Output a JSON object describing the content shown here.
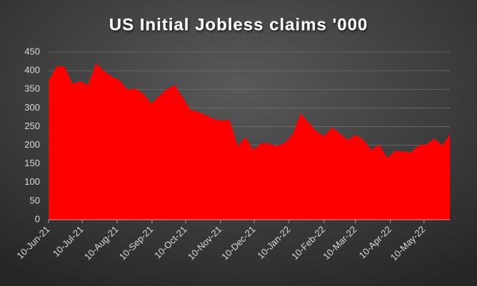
{
  "chart_data": {
    "type": "area",
    "title": "US Initial Jobless claims '000",
    "x": [
      "10-Jun-21",
      "17-Jun-21",
      "24-Jun-21",
      "1-Jul-21",
      "8-Jul-21",
      "15-Jul-21",
      "22-Jul-21",
      "29-Jul-21",
      "5-Aug-21",
      "12-Aug-21",
      "19-Aug-21",
      "26-Aug-21",
      "2-Sep-21",
      "9-Sep-21",
      "16-Sep-21",
      "23-Sep-21",
      "30-Sep-21",
      "7-Oct-21",
      "14-Oct-21",
      "21-Oct-21",
      "28-Oct-21",
      "4-Nov-21",
      "11-Nov-21",
      "18-Nov-21",
      "25-Nov-21",
      "2-Dec-21",
      "9-Dec-21",
      "16-Dec-21",
      "23-Dec-21",
      "30-Dec-21",
      "6-Jan-22",
      "13-Jan-22",
      "20-Jan-22",
      "27-Jan-22",
      "3-Feb-22",
      "10-Feb-22",
      "17-Feb-22",
      "24-Feb-22",
      "3-Mar-22",
      "10-Mar-22",
      "17-Mar-22",
      "24-Mar-22",
      "31-Mar-22",
      "7-Apr-22",
      "14-Apr-22",
      "21-Apr-22",
      "28-Apr-22",
      "5-May-22",
      "12-May-22",
      "19-May-22",
      "26-May-22",
      "2-Jun-22"
    ],
    "values": [
      375,
      412,
      412,
      366,
      372,
      362,
      420,
      400,
      385,
      375,
      350,
      352,
      340,
      312,
      332,
      351,
      362,
      330,
      296,
      290,
      281,
      271,
      267,
      268,
      199,
      222,
      188,
      206,
      205,
      198,
      207,
      230,
      286,
      262,
      238,
      225,
      248,
      232,
      215,
      228,
      215,
      188,
      202,
      167,
      185,
      184,
      181,
      200,
      203,
      218,
      200,
      229
    ],
    "color": "#ff0000",
    "xlim": [
      "10-Jun-21",
      "2-Jun-22"
    ],
    "xticks": [
      "10-Jun-21",
      "10-Jul-21",
      "10-Aug-21",
      "10-Sep-21",
      "10-Oct-21",
      "10-Nov-21",
      "10-Dec-21",
      "10-Jan-22",
      "10-Feb-22",
      "10-Mar-22",
      "10-Apr-22",
      "10-May-22"
    ],
    "ylim": [
      0,
      450
    ],
    "yticks": [
      0,
      50,
      100,
      150,
      200,
      250,
      300,
      350,
      400,
      450
    ],
    "grid": true
  }
}
